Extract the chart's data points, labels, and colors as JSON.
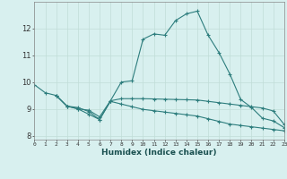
{
  "xlabel": "Humidex (Indice chaleur)",
  "line1_x": [
    0,
    1,
    2,
    3,
    4,
    5,
    6,
    7,
    8,
    9,
    10,
    11,
    12,
    13,
    14,
    15,
    16,
    17,
    18,
    19,
    20,
    21,
    22,
    23
  ],
  "line1_y": [
    9.9,
    9.6,
    9.5,
    9.1,
    9.0,
    8.8,
    8.6,
    9.3,
    10.0,
    10.05,
    11.6,
    11.8,
    11.75,
    12.3,
    12.55,
    12.65,
    11.75,
    11.1,
    10.3,
    9.35,
    9.05,
    8.65,
    8.55,
    8.3
  ],
  "line2_x": [
    2,
    3,
    4,
    5,
    6,
    7,
    8,
    9,
    10,
    11,
    12,
    13,
    14,
    15,
    16,
    17,
    18,
    19,
    20,
    21,
    22,
    23
  ],
  "line2_y": [
    9.5,
    9.1,
    9.0,
    8.95,
    8.7,
    9.3,
    9.38,
    9.38,
    9.38,
    9.37,
    9.36,
    9.35,
    9.34,
    9.33,
    9.28,
    9.23,
    9.18,
    9.13,
    9.08,
    9.03,
    8.92,
    8.42
  ],
  "line3_x": [
    2,
    3,
    4,
    5,
    6,
    7,
    8,
    9,
    10,
    11,
    12,
    13,
    14,
    15,
    16,
    17,
    18,
    19,
    20,
    21,
    22,
    23
  ],
  "line3_y": [
    9.5,
    9.1,
    9.05,
    8.9,
    8.6,
    9.28,
    9.18,
    9.08,
    8.98,
    8.93,
    8.88,
    8.83,
    8.78,
    8.73,
    8.63,
    8.53,
    8.43,
    8.38,
    8.33,
    8.28,
    8.23,
    8.18
  ],
  "color": "#2d7d7d",
  "bg_color": "#d8f0ef",
  "grid_color": "#c0ddd8",
  "ylim": [
    7.85,
    13.0
  ],
  "xlim": [
    0,
    23
  ],
  "yticks": [
    8,
    9,
    10,
    11,
    12
  ],
  "xticks": [
    0,
    1,
    2,
    3,
    4,
    5,
    6,
    7,
    8,
    9,
    10,
    11,
    12,
    13,
    14,
    15,
    16,
    17,
    18,
    19,
    20,
    21,
    22,
    23
  ]
}
